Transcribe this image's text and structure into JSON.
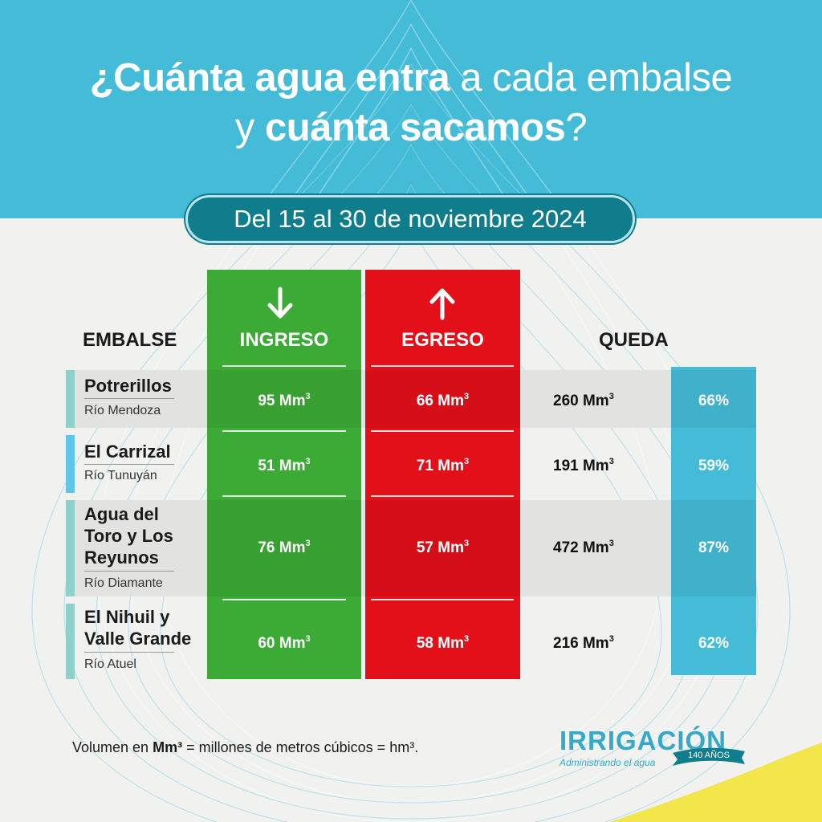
{
  "title": {
    "line1_bold": "¿Cuánta agua entra",
    "line1_rest": " a cada embalse",
    "line2_prefix": "y ",
    "line2_bold": "cuánta sacamos",
    "line2_suffix": "?"
  },
  "period": "Del 15 al 30 de noviembre 2024",
  "headers": {
    "reservoir": "EMBALSE",
    "inflow": "INGRESO",
    "outflow": "EGRESO",
    "remaining": "QUEDA"
  },
  "unit": "Mm",
  "unit_exp": "3",
  "rows": [
    {
      "name": "Potrerillos",
      "river": "Río Mendoza",
      "inflow": "95",
      "outflow": "66",
      "remaining": "260",
      "percent": "66%"
    },
    {
      "name": "El Carrizal",
      "river": "Río Tunuyán",
      "inflow": "51",
      "outflow": "71",
      "remaining": "191",
      "percent": "59%"
    },
    {
      "name_lines": [
        "Agua del",
        "Toro y Los",
        "Reyunos"
      ],
      "river": "Río Diamante",
      "inflow": "76",
      "outflow": "57",
      "remaining": "472",
      "percent": "87%"
    },
    {
      "name_lines": [
        "El Nihuil y",
        "Valle Grande"
      ],
      "river": "Río Atuel",
      "inflow": "60",
      "outflow": "58",
      "remaining": "216",
      "percent": "62%"
    }
  ],
  "footnote": {
    "prefix": "Volumen en ",
    "bold": "Mm³",
    "suffix": " = millones de metros cúbicos = hm³."
  },
  "logo": {
    "name": "IRRIGACIÓN",
    "tagline": "Administrando el agua",
    "badge": "140 AÑOS"
  },
  "colors": {
    "header_band": "#44bcd8",
    "pill": "#0f7d8c",
    "inflow": "#3cab35",
    "outflow": "#e30f19",
    "remaining": "#44bcd8",
    "accent_yellow": "#f3e64a",
    "bar_teal": "#8fd0c8",
    "bar_blue": "#5fc6ea"
  }
}
